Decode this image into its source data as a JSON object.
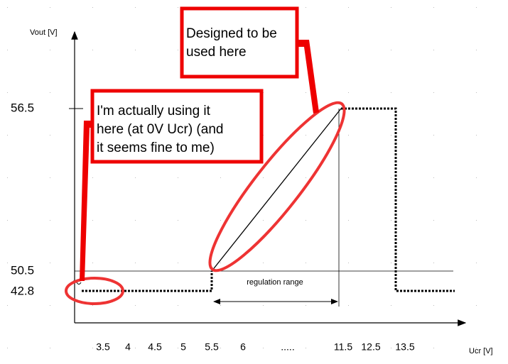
{
  "axes": {
    "y_label": "Vout [V]",
    "x_label": "Ucr [V]",
    "y_ticks": [
      "56.5",
      "50.5",
      "42.8"
    ],
    "x_ticks": [
      "3.5",
      "4",
      "4.5",
      "5",
      "5.5",
      "6",
      ".....",
      "11.5",
      "12.5",
      "13.5"
    ]
  },
  "range_label": "regulation range",
  "annotations": [
    {
      "lines": [
        "Designed to be",
        "used here"
      ]
    },
    {
      "lines": [
        "I'm actually using it",
        "here (at 0V Ucr) (and",
        "it seems fine to me)"
      ]
    }
  ]
}
